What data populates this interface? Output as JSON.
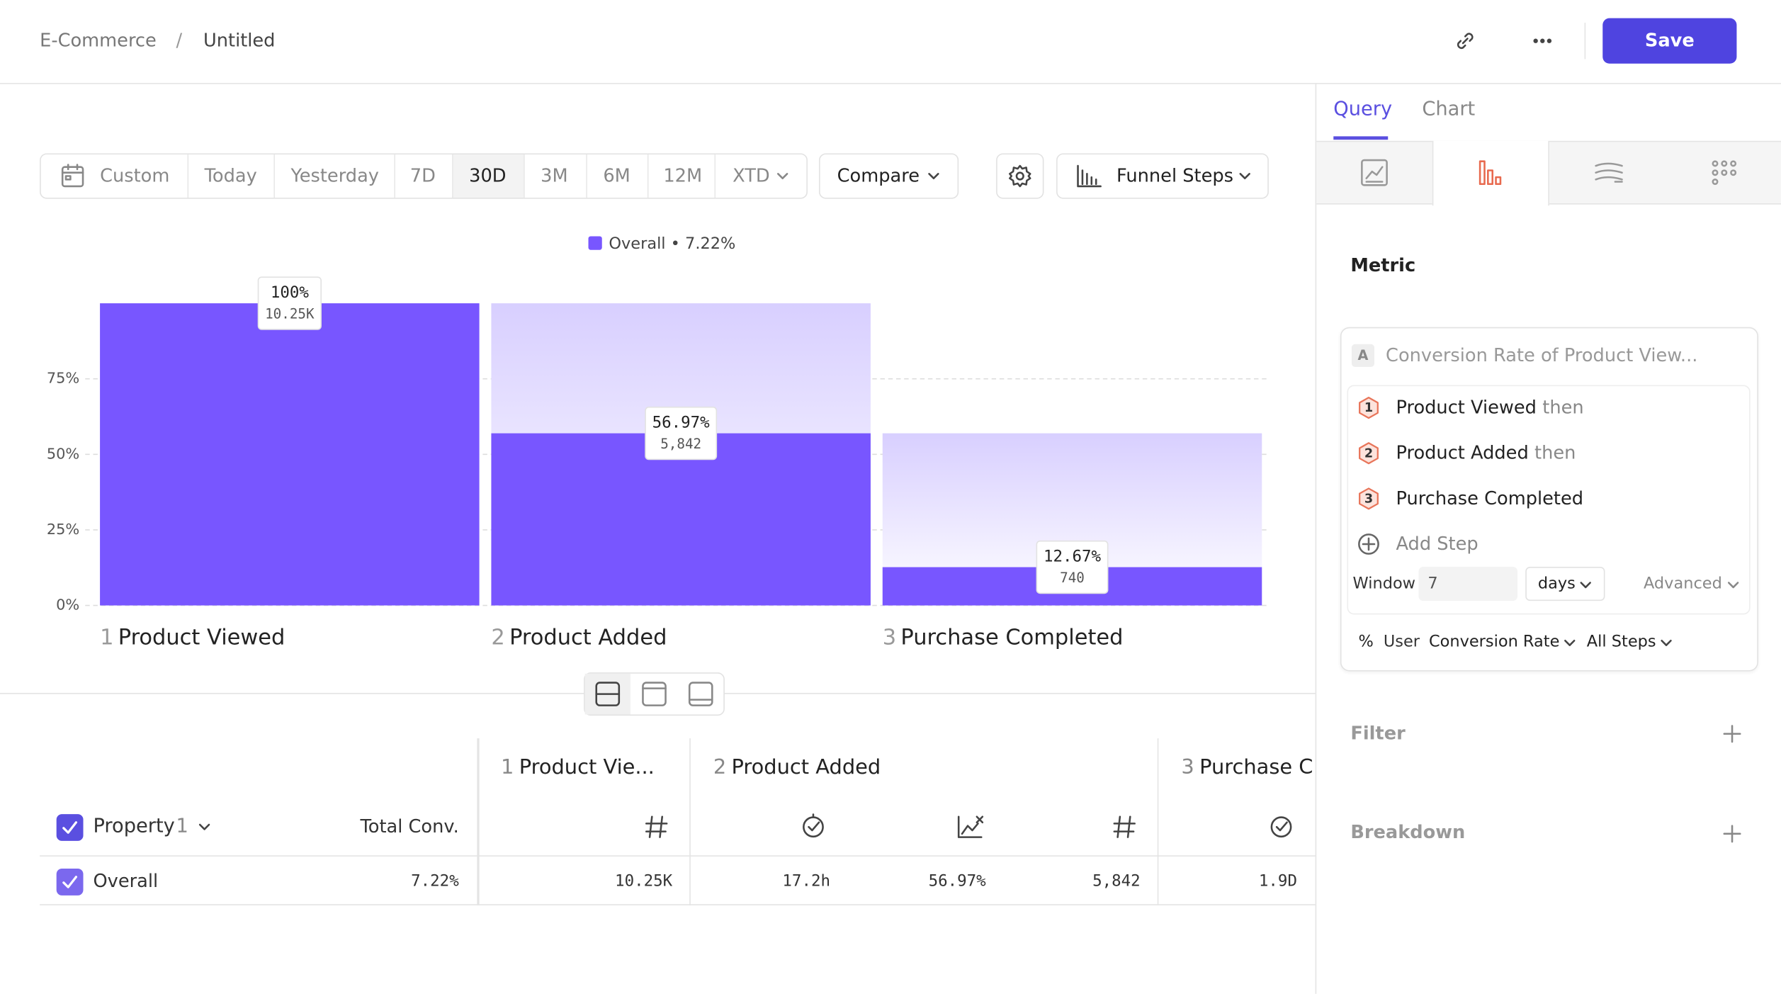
{
  "breadcrumb": {
    "workspace": "E-Commerce",
    "separator": "/",
    "title": "Untitled"
  },
  "actions": {
    "save": "Save"
  },
  "tabs": [
    "Query",
    "Chart"
  ],
  "date_range": [
    "Custom",
    "Today",
    "Yesterday",
    "7D",
    "30D",
    "3M",
    "6M",
    "12M",
    "XTD"
  ],
  "compare": "Compare",
  "chart_type": "Funnel Steps",
  "chart_data": {
    "type": "bar",
    "step_numbers": [
      "1",
      "2",
      "3"
    ],
    "categories": [
      "Product Viewed",
      "Product Added",
      "Purchase Completed"
    ],
    "series": [
      {
        "name": "Overall • 7.22%",
        "color": "#7856ff",
        "values": [
          100,
          56.97,
          12.67
        ],
        "value_labels": [
          "100%",
          "56.97%",
          "12.67%"
        ],
        "count_labels": [
          "10.25K",
          "5,842",
          "740"
        ]
      }
    ],
    "ylim": [
      0,
      100
    ],
    "yticks": [
      {
        "value": 0,
        "label": "0%"
      },
      {
        "value": 25,
        "label": "25%"
      },
      {
        "value": 50,
        "label": "50%"
      },
      {
        "value": 75,
        "label": "75%"
      }
    ],
    "grid": true
  },
  "table": {
    "header_property": "Property",
    "header_property_count": "1",
    "header_total": "Total Conv.",
    "step_headers": [
      {
        "num": "1",
        "name": "Product Vie..."
      },
      {
        "num": "2",
        "name": "Product Added"
      },
      {
        "num": "3",
        "name": "Purchase C"
      }
    ],
    "rows": [
      [
        "Overall",
        "7.22%",
        "10.25K",
        "17.2h",
        "56.97%",
        "5,842",
        "1.9D"
      ]
    ]
  },
  "query": {
    "metric_heading": "Metric",
    "metric_letter": "A",
    "metric_name": "Conversion Rate of Product View...",
    "steps": [
      {
        "num": "1",
        "name": "Product Viewed",
        "suffix": "then"
      },
      {
        "num": "2",
        "name": "Product Added",
        "suffix": "then"
      },
      {
        "num": "3",
        "name": "Purchase Completed"
      }
    ],
    "add_step": "Add Step",
    "window_label": "Window",
    "window_value": "7",
    "window_unit": "days",
    "advanced": "Advanced",
    "measure_symbol": "%",
    "measure_subject": "User",
    "measure": "Conversion Rate",
    "steps_scope": "All Steps",
    "filter": "Filter",
    "breakdown": "Breakdown"
  }
}
